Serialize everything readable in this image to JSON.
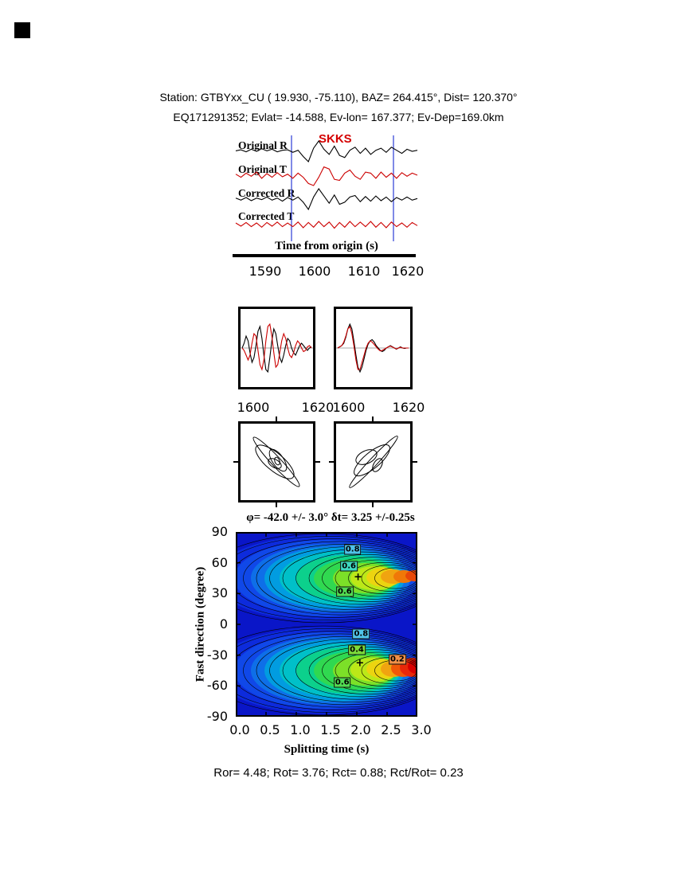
{
  "header": {
    "line1": "Station: GTBYxx_CU (  19.930,  -75.110), BAZ=  264.415°, Dist=  120.370°",
    "line2": "EQ171291352; Evlat= -14.588, Ev-lon= 167.377; Ev-Dep=169.0km"
  },
  "waveform_panel": {
    "phase_label": "SKKS",
    "trace_labels": [
      "Original R",
      "Original T",
      "Corrected R",
      "Corrected T"
    ],
    "axis_label": "Time from origin (s)",
    "ticks": [
      "1590",
      "1600",
      "1610",
      "1620"
    ]
  },
  "zoom_panels": {
    "left_ticks": [
      "1600",
      "1620"
    ],
    "right_ticks": [
      "1600",
      "1620"
    ]
  },
  "contour": {
    "title": "φ= -42.0 +/- 3.0° δt= 3.25 +/-0.25s",
    "ylabel": "Fast direction (degree)",
    "xlabel": "Splitting time (s)",
    "x_ticks": [
      "0.0",
      "0.5",
      "1.0",
      "1.5",
      "2.0",
      "2.5",
      "3.0"
    ],
    "y_ticks": [
      "90",
      "60",
      "30",
      "0",
      "-30",
      "-60",
      "-90"
    ],
    "labels": [
      {
        "text": "0.8",
        "dt": 1.93,
        "phi": 73,
        "bg": "#4fc3e8"
      },
      {
        "text": "0.6",
        "dt": 1.87,
        "phi": 57,
        "bg": "#3fd9c0"
      },
      {
        "text": "0.6",
        "dt": 1.8,
        "phi": 32,
        "bg": "#52db52"
      },
      {
        "text": "0.8",
        "dt": 2.07,
        "phi": -9,
        "bg": "#4fc3e8"
      },
      {
        "text": "0.4",
        "dt": 2.0,
        "phi": -25,
        "bg": "#7cdb3a"
      },
      {
        "text": "0.2",
        "dt": 2.67,
        "phi": -34,
        "bg": "#f09048"
      },
      {
        "text": "0.6",
        "dt": 1.76,
        "phi": -57,
        "bg": "#52db52"
      },
      {
        "text": "+",
        "dt": 2.02,
        "phi": 46,
        "bg": "none",
        "plain": true
      },
      {
        "text": "+",
        "dt": 2.05,
        "phi": -38,
        "bg": "none",
        "plain": true
      }
    ]
  },
  "caption": "Ror= 4.48; Rot= 3.76; Rct= 0.88; Rct/Rot= 0.23",
  "chart_data": {
    "main_waveforms": {
      "type": "line",
      "xlabel": "Time from origin (s)",
      "x_range": [
        1583,
        1622
      ],
      "x_tick_values": [
        1590,
        1600,
        1610,
        1620
      ],
      "phase": "SKKS",
      "window_lines_s": [
        1595.5,
        1617
      ],
      "traces": [
        {
          "name": "Original R",
          "color": "#000000",
          "values": [
            0.05,
            0.15,
            -0.05,
            0.2,
            0.0,
            0.25,
            0.05,
            0.2,
            -0.05,
            0.1,
            0.15,
            -0.1,
            0.1,
            -0.5,
            -1.0,
            0.3,
            1.0,
            0.2,
            -0.3,
            0.5,
            -0.4,
            -0.6,
            0.1,
            0.4,
            -0.2,
            0.3,
            -0.3,
            0.1,
            0.3,
            -0.1,
            0.4,
            0.1,
            -0.2,
            0.2,
            0.0,
            0.1
          ]
        },
        {
          "name": "Original T",
          "color": "#cc0000",
          "values": [
            0.1,
            -0.2,
            0.2,
            -0.1,
            0.3,
            -0.3,
            0.15,
            -0.2,
            0.25,
            -0.15,
            0.1,
            -0.3,
            0.2,
            -0.2,
            -0.8,
            -1.0,
            -0.2,
            0.8,
            0.6,
            -0.4,
            -0.5,
            0.2,
            0.5,
            -0.1,
            -0.4,
            0.3,
            0.2,
            -0.3,
            0.3,
            -0.2,
            0.2,
            -0.3,
            0.25,
            -0.1,
            0.2,
            0.0
          ]
        },
        {
          "name": "Corrected R",
          "color": "#000000",
          "values": [
            0.1,
            -0.1,
            0.15,
            -0.15,
            0.1,
            -0.05,
            0.2,
            -0.1,
            0.1,
            -0.2,
            0.15,
            -0.1,
            0.2,
            -0.3,
            -1.0,
            0.2,
            1.0,
            0.3,
            -0.4,
            0.4,
            -0.5,
            -0.3,
            0.2,
            0.35,
            -0.25,
            0.25,
            -0.2,
            0.3,
            -0.15,
            0.2,
            -0.25,
            0.15,
            -0.1,
            0.2,
            -0.1,
            0.05
          ]
        },
        {
          "name": "Corrected T",
          "color": "#cc0000",
          "values": [
            0.15,
            -0.15,
            0.2,
            -0.2,
            0.15,
            -0.25,
            0.2,
            -0.15,
            0.25,
            -0.2,
            0.15,
            -0.2,
            0.25,
            -0.3,
            0.2,
            -0.25,
            0.3,
            -0.2,
            0.25,
            -0.35,
            0.2,
            -0.25,
            0.3,
            -0.2,
            0.25,
            -0.2,
            0.3,
            -0.25,
            0.2,
            -0.3,
            0.25,
            -0.2,
            0.15,
            -0.25,
            0.2,
            -0.1
          ]
        }
      ]
    },
    "window_original": {
      "type": "line",
      "x_range": [
        1595,
        1625
      ],
      "x_tick_values": [
        1600,
        1620
      ],
      "series": [
        {
          "name": "R",
          "color": "#000000",
          "values": [
            0,
            0.2,
            0.5,
            0.3,
            -0.2,
            -0.6,
            -0.4,
            0.1,
            0.7,
            0.9,
            0.4,
            -0.3,
            -0.9,
            -1.0,
            -0.4,
            0.3,
            0.8,
            0.6,
            0.1,
            -0.4,
            -0.6,
            -0.3,
            0.1,
            0.4,
            0.3,
            0,
            -0.2,
            -0.3,
            -0.1,
            0.1,
            0.2,
            0.1,
            0,
            -0.1,
            0,
            0.05
          ]
        },
        {
          "name": "T",
          "color": "#cc0000",
          "values": [
            0,
            -0.1,
            -0.3,
            -0.5,
            -0.3,
            0.2,
            0.6,
            0.5,
            -0.1,
            -0.7,
            -0.9,
            -0.5,
            0.3,
            0.9,
            1.0,
            0.5,
            -0.2,
            -0.8,
            -0.7,
            -0.2,
            0.3,
            0.6,
            0.4,
            0,
            -0.3,
            -0.4,
            -0.2,
            0.1,
            0.3,
            0.2,
            0,
            -0.15,
            -0.1,
            0.05,
            0.1,
            0
          ]
        }
      ]
    },
    "window_corrected": {
      "type": "line",
      "x_range": [
        1595,
        1625
      ],
      "x_tick_values": [
        1600,
        1620
      ],
      "series": [
        {
          "name": "R",
          "color": "#000000",
          "values": [
            0,
            0.05,
            0.1,
            0.2,
            0.45,
            0.8,
            1.0,
            0.8,
            0.3,
            -0.3,
            -0.8,
            -1.0,
            -0.8,
            -0.45,
            -0.1,
            0.15,
            0.3,
            0.35,
            0.25,
            0.1,
            0,
            -0.1,
            -0.15,
            -0.1,
            0,
            0.05,
            0.1,
            0.05,
            0,
            -0.05,
            0,
            0.05,
            0,
            -0.02,
            0,
            0
          ]
        },
        {
          "name": "T",
          "color": "#cc0000",
          "values": [
            0,
            0.05,
            0.1,
            0.25,
            0.5,
            0.8,
            0.9,
            0.6,
            0.1,
            -0.5,
            -0.9,
            -0.9,
            -0.6,
            -0.3,
            0,
            0.2,
            0.3,
            0.25,
            0.15,
            0.05,
            -0.05,
            -0.12,
            -0.1,
            -0.05,
            0,
            0.05,
            0.08,
            0.04,
            0,
            -0.04,
            0,
            0.03,
            0,
            0,
            0,
            0
          ]
        }
      ]
    },
    "particle_motion_original": {
      "type": "scatter",
      "description": "elliptical particle motion, major axis oriented NW-SE"
    },
    "particle_motion_corrected": {
      "type": "scatter",
      "description": "near-linear particle motion, major axis oriented NE-SW"
    },
    "misfit_surface": {
      "type": "heatmap",
      "xlabel": "Splitting time (s)",
      "ylabel": "Fast direction (degree)",
      "x_range": [
        0,
        3.0
      ],
      "y_range": [
        -90,
        90
      ],
      "best_phi_deg": -42.0,
      "phi_error_deg": 3.0,
      "best_dt_s": 3.25,
      "dt_error_s": 0.25,
      "contour_levels": [
        0.2,
        0.4,
        0.6,
        0.8
      ],
      "high_regions": [
        {
          "phi_center": 45,
          "dt_range": [
            0.5,
            3.0
          ],
          "peak_color": "orange at right edge"
        },
        {
          "phi_center": -42,
          "dt_range": [
            0.5,
            3.0
          ],
          "peak_color": "red at right edge"
        }
      ]
    },
    "statistics": {
      "Ror": 4.48,
      "Rot": 3.76,
      "Rct": 0.88,
      "Rct_over_Rot": 0.23
    }
  }
}
